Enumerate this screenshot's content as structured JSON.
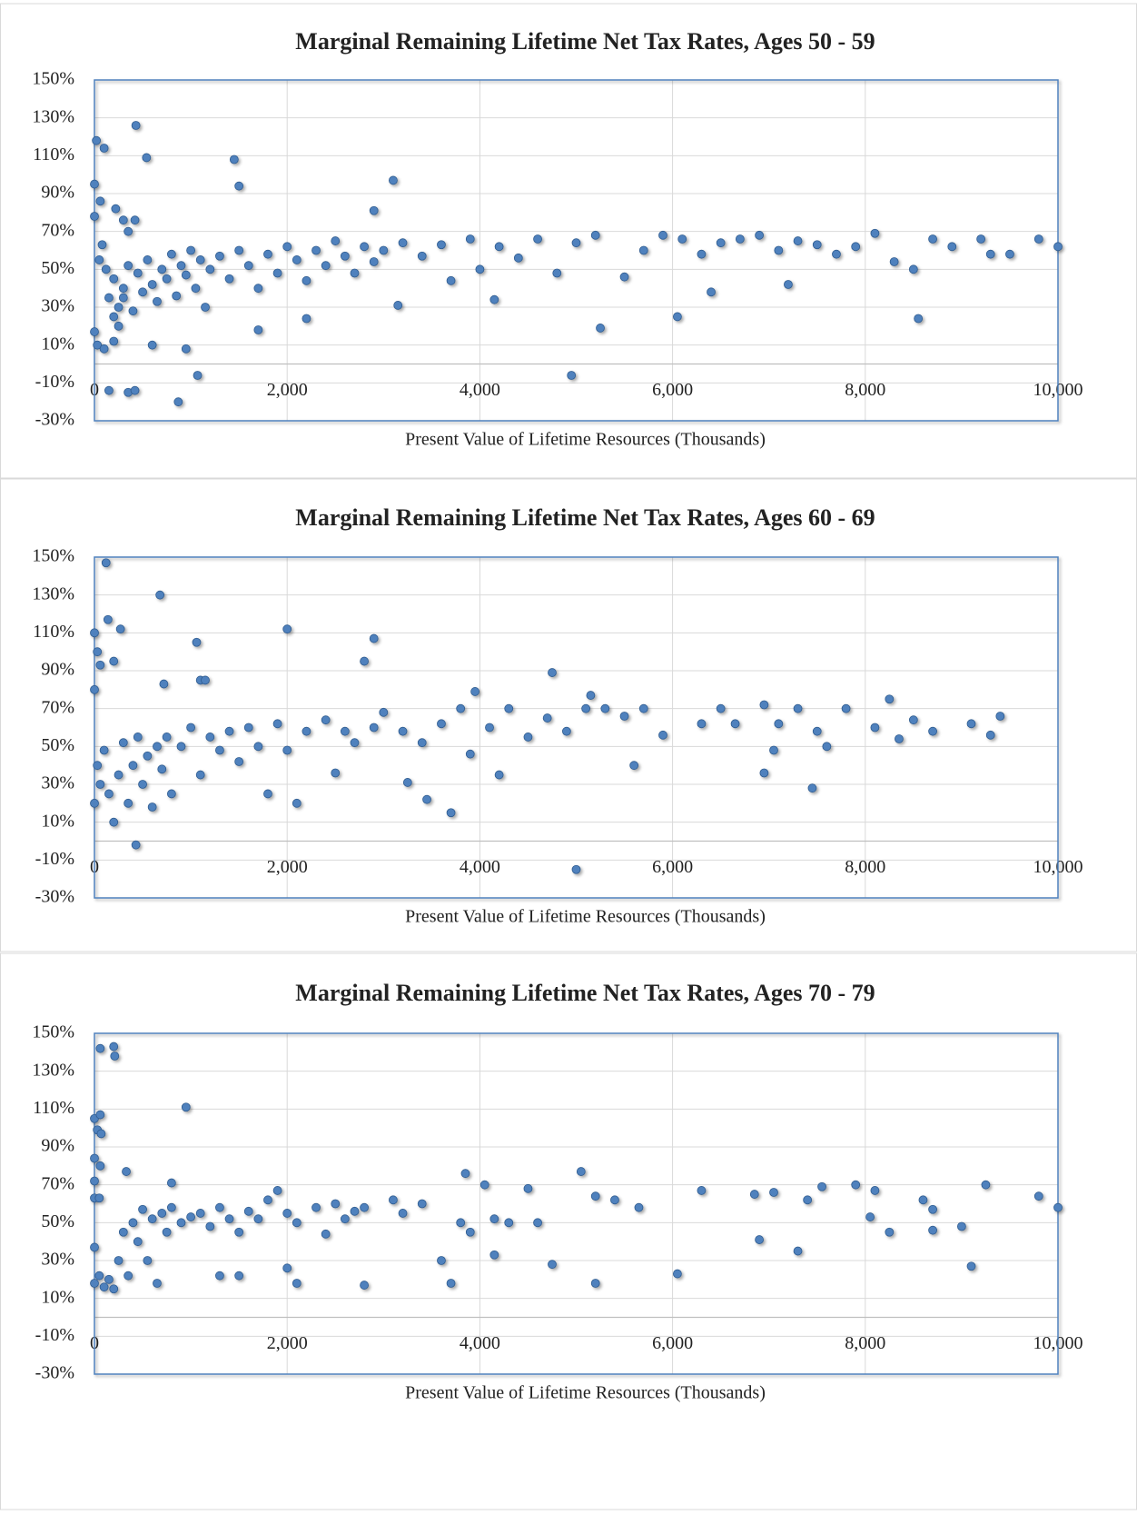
{
  "chart_data": [
    {
      "type": "scatter",
      "title": "Marginal Remaining Lifetime Net Tax Rates, Ages 50 - 59",
      "x_label": "Present Value of Lifetime Resources (Thousands)",
      "color": "#4f81bd",
      "grid": true,
      "xlim": [
        0,
        10000
      ],
      "ylim": [
        -30,
        150
      ],
      "xticks": [
        0,
        {
          "value": 2000,
          "label": "2,000"
        },
        {
          "value": 4000,
          "label": "4,000"
        },
        {
          "value": 6000,
          "label": "6,000"
        },
        {
          "value": 8000,
          "label": "8,000"
        },
        {
          "value": 10000,
          "label": "10,000"
        }
      ],
      "yticks": [
        {
          "value": -30,
          "label": "-30%"
        },
        {
          "value": -10,
          "label": "-10%"
        },
        {
          "value": 10,
          "label": "10%"
        },
        {
          "value": 30,
          "label": "30%"
        },
        {
          "value": 50,
          "label": "50%"
        },
        {
          "value": 70,
          "label": "70%"
        },
        {
          "value": 90,
          "label": "90%"
        },
        {
          "value": 110,
          "label": "110%"
        },
        {
          "value": 130,
          "label": "130%"
        },
        {
          "value": 150,
          "label": "150%"
        }
      ],
      "x": [
        20,
        100,
        220,
        300,
        350,
        420,
        430,
        540,
        1450,
        1500,
        3100,
        2900,
        0,
        0,
        60,
        150,
        350,
        420,
        870,
        1070,
        4950,
        5250,
        6050,
        6400,
        8550,
        7200,
        4150,
        3150,
        2200,
        1700,
        0,
        30,
        100,
        200,
        600,
        950,
        150,
        200,
        250,
        300,
        350,
        400,
        450,
        500,
        550,
        600,
        650,
        700,
        750,
        800,
        850,
        900,
        950,
        1000,
        1050,
        1100,
        1150,
        1200,
        1300,
        1400,
        1500,
        1600,
        1700,
        1800,
        1900,
        2000,
        2100,
        2200,
        2300,
        2400,
        2500,
        2600,
        2700,
        2800,
        2900,
        3000,
        3200,
        3400,
        3600,
        3700,
        3900,
        4000,
        4200,
        4400,
        4600,
        4800,
        5000,
        5200,
        5500,
        5700,
        5900,
        6100,
        6300,
        6500,
        6700,
        6900,
        7100,
        7300,
        7500,
        7700,
        7900,
        8100,
        8300,
        8500,
        8700,
        8900,
        9200,
        9300,
        9500,
        9800,
        10000,
        50,
        80,
        120,
        200,
        250,
        300
      ],
      "values": [
        118,
        114,
        82,
        76,
        70,
        76,
        126,
        109,
        108,
        94,
        97,
        81,
        95,
        78,
        86,
        -14,
        -15,
        -14,
        -20,
        -6,
        -6,
        19,
        25,
        38,
        24,
        42,
        34,
        31,
        24,
        18,
        17,
        10,
        8,
        12,
        10,
        8,
        35,
        45,
        30,
        40,
        52,
        28,
        48,
        38,
        55,
        42,
        33,
        50,
        45,
        58,
        36,
        52,
        47,
        60,
        40,
        55,
        30,
        50,
        57,
        45,
        60,
        52,
        40,
        58,
        48,
        62,
        55,
        44,
        60,
        52,
        65,
        57,
        48,
        62,
        54,
        60,
        64,
        57,
        63,
        44,
        66,
        50,
        62,
        56,
        66,
        48,
        64,
        68,
        46,
        60,
        68,
        66,
        58,
        64,
        66,
        68,
        60,
        65,
        63,
        58,
        62,
        69,
        54,
        50,
        66,
        62,
        66,
        58,
        58,
        66,
        62,
        55,
        63,
        50,
        25,
        20,
        35
      ]
    },
    {
      "type": "scatter",
      "title": "Marginal Remaining Lifetime Net Tax Rates, Ages 60 - 69",
      "x_label": "Present Value of Lifetime Resources (Thousands)",
      "color": "#4f81bd",
      "grid": true,
      "xlim": [
        0,
        10000
      ],
      "ylim": [
        -30,
        150
      ],
      "xticks": [
        0,
        {
          "value": 2000,
          "label": "2,000"
        },
        {
          "value": 4000,
          "label": "4,000"
        },
        {
          "value": 6000,
          "label": "6,000"
        },
        {
          "value": 8000,
          "label": "8,000"
        },
        {
          "value": 10000,
          "label": "10,000"
        }
      ],
      "yticks": [
        {
          "value": -30,
          "label": "-30%"
        },
        {
          "value": -10,
          "label": "-10%"
        },
        {
          "value": 10,
          "label": "10%"
        },
        {
          "value": 30,
          "label": "30%"
        },
        {
          "value": 50,
          "label": "50%"
        },
        {
          "value": 70,
          "label": "70%"
        },
        {
          "value": 90,
          "label": "90%"
        },
        {
          "value": 110,
          "label": "110%"
        },
        {
          "value": 130,
          "label": "130%"
        },
        {
          "value": 150,
          "label": "150%"
        }
      ],
      "x": [
        120,
        680,
        2000,
        2900,
        140,
        270,
        1060,
        2800,
        0,
        30,
        60,
        0,
        200,
        720,
        1100,
        1150,
        4750,
        5000,
        430,
        3700,
        3450,
        3250,
        4200,
        5600,
        6950,
        7450,
        7050,
        7600,
        8250,
        3950,
        5150,
        0,
        30,
        60,
        100,
        150,
        200,
        250,
        300,
        350,
        400,
        450,
        500,
        550,
        600,
        650,
        700,
        750,
        800,
        900,
        1000,
        1100,
        1200,
        1300,
        1400,
        1500,
        1600,
        1700,
        1800,
        1900,
        2000,
        2100,
        2200,
        2400,
        2500,
        2600,
        2700,
        2900,
        3000,
        3200,
        3400,
        3600,
        3800,
        3900,
        4100,
        4300,
        4500,
        4700,
        4900,
        5100,
        5300,
        5500,
        5700,
        5900,
        6300,
        6500,
        6650,
        6950,
        7100,
        7300,
        7500,
        7800,
        8100,
        8350,
        8500,
        8700,
        9100,
        9300,
        9400
      ],
      "values": [
        147,
        130,
        112,
        107,
        117,
        112,
        105,
        95,
        110,
        100,
        93,
        80,
        95,
        83,
        85,
        85,
        89,
        -15,
        -2,
        15,
        22,
        31,
        35,
        40,
        36,
        28,
        48,
        50,
        75,
        79,
        77,
        20,
        40,
        30,
        48,
        25,
        10,
        35,
        52,
        20,
        40,
        55,
        30,
        45,
        18,
        50,
        38,
        55,
        25,
        50,
        60,
        35,
        55,
        48,
        58,
        42,
        60,
        50,
        25,
        62,
        48,
        20,
        58,
        64,
        36,
        58,
        52,
        60,
        68,
        58,
        52,
        62,
        70,
        46,
        60,
        70,
        55,
        65,
        58,
        70,
        70,
        66,
        70,
        56,
        62,
        70,
        62,
        72,
        62,
        70,
        58,
        70,
        60,
        54,
        64,
        58,
        62,
        56,
        66
      ]
    },
    {
      "type": "scatter",
      "title": "Marginal Remaining Lifetime Net Tax Rates, Ages 70 - 79",
      "x_label": "Present Value of Lifetime Resources (Thousands)",
      "color": "#4f81bd",
      "grid": true,
      "xlim": [
        0,
        10000
      ],
      "ylim": [
        -30,
        150
      ],
      "xticks": [
        0,
        {
          "value": 2000,
          "label": "2,000"
        },
        {
          "value": 4000,
          "label": "4,000"
        },
        {
          "value": 6000,
          "label": "6,000"
        },
        {
          "value": 8000,
          "label": "8,000"
        },
        {
          "value": 10000,
          "label": "10,000"
        }
      ],
      "yticks": [
        {
          "value": -30,
          "label": "-30%"
        },
        {
          "value": -10,
          "label": "-10%"
        },
        {
          "value": 10,
          "label": "10%"
        },
        {
          "value": 30,
          "label": "30%"
        },
        {
          "value": 50,
          "label": "50%"
        },
        {
          "value": 70,
          "label": "70%"
        },
        {
          "value": 90,
          "label": "90%"
        },
        {
          "value": 110,
          "label": "110%"
        },
        {
          "value": 130,
          "label": "130%"
        },
        {
          "value": 150,
          "label": "150%"
        }
      ],
      "x": [
        60,
        200,
        210,
        950,
        0,
        60,
        30,
        70,
        0,
        60,
        330,
        0,
        800,
        3850,
        5050,
        4050,
        9250,
        3700,
        2800,
        5200,
        6050,
        7300,
        6900,
        9100,
        4750,
        4150,
        3600,
        2000,
        2100,
        1500,
        1300,
        0,
        50,
        100,
        150,
        200,
        250,
        300,
        350,
        400,
        450,
        500,
        550,
        600,
        650,
        700,
        750,
        800,
        900,
        1000,
        1100,
        1200,
        1300,
        1400,
        1500,
        1600,
        1700,
        1800,
        1900,
        2000,
        2100,
        2300,
        2400,
        2500,
        2600,
        2700,
        2800,
        3100,
        3200,
        3400,
        3800,
        3900,
        4150,
        4300,
        4500,
        4600,
        5200,
        5400,
        5650,
        6300,
        6850,
        7050,
        7400,
        7550,
        7900,
        8050,
        8100,
        8250,
        8600,
        8700,
        8700,
        9000,
        9800,
        10000,
        0,
        0,
        50
      ],
      "values": [
        142,
        143,
        138,
        111,
        105,
        107,
        99,
        97,
        84,
        80,
        77,
        72,
        71,
        76,
        77,
        70,
        70,
        18,
        17,
        18,
        23,
        35,
        41,
        27,
        28,
        33,
        30,
        26,
        18,
        22,
        22,
        18,
        22,
        16,
        20,
        15,
        30,
        45,
        22,
        50,
        40,
        57,
        30,
        52,
        18,
        55,
        45,
        58,
        50,
        53,
        55,
        48,
        58,
        52,
        45,
        56,
        52,
        62,
        67,
        55,
        50,
        58,
        44,
        60,
        52,
        56,
        58,
        62,
        55,
        60,
        50,
        45,
        52,
        50,
        68,
        50,
        64,
        62,
        58,
        67,
        65,
        66,
        62,
        69,
        70,
        53,
        67,
        45,
        62,
        46,
        57,
        48,
        64,
        58,
        37,
        63,
        63
      ]
    }
  ]
}
